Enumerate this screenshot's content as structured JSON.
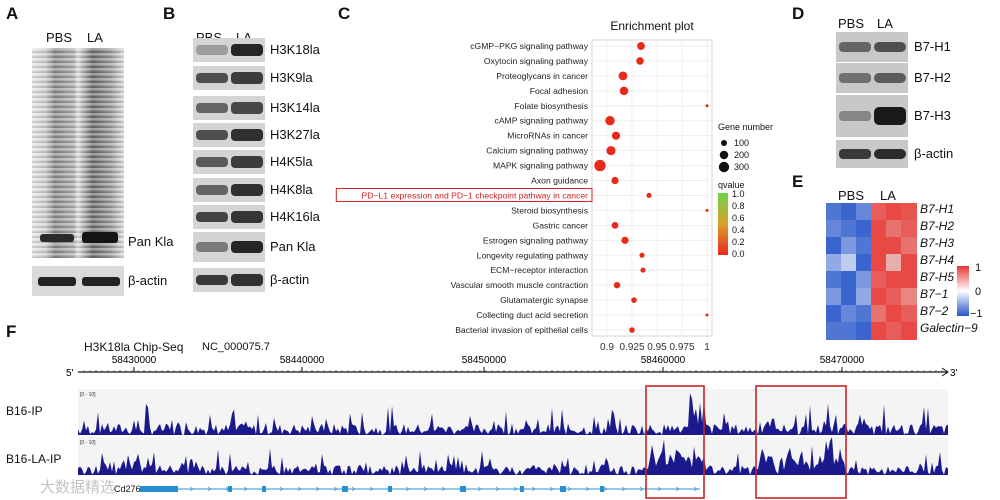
{
  "panel_a": {
    "label": "A",
    "lanes": [
      "PBS",
      "LA"
    ],
    "blot_labels": [
      "Pan Kla",
      "β-actin"
    ]
  },
  "panel_b": {
    "label": "B",
    "lanes": [
      "PBS",
      "LA"
    ],
    "blot_labels": [
      "H3K18la",
      "H3K9la",
      "H3K14la",
      "H3K27la",
      "H4K5la",
      "H4K8la",
      "H4K16la",
      "Pan Kla",
      "β-actin"
    ]
  },
  "panel_c": {
    "label": "C",
    "legend_size_title": "Gene number",
    "legend_color_title": "qvalue",
    "chart_data": {
      "type": "scatter",
      "title": "Enrichment plot",
      "xlabel": "",
      "ylabel": "",
      "xlim": [
        0.885,
        1.005
      ],
      "xticks": [
        "0.9",
        "0.925",
        "0.95",
        "0.975",
        "1"
      ],
      "xtick_values": [
        0.9,
        0.925,
        0.95,
        0.975,
        1.0
      ],
      "highlighted_term": "PD−L1 expression and PD−1 checkpoint pathway in cancer",
      "terms": [
        "cGMP−PKG signaling pathway",
        "Oxytocin signaling pathway",
        "Proteoglycans in cancer",
        "Focal adhesion",
        "Folate biosynthesis",
        "cAMP signaling pathway",
        "MicroRNAs in cancer",
        "Calcium signaling pathway",
        "MAPK signaling pathway",
        "Axon guidance",
        "PD−L1 expression and PD−1 checkpoint pathway in cancer",
        "Steroid biosynthesis",
        "Gastric cancer",
        "Estrogen signaling pathway",
        "Longevity regulating pathway",
        "ECM−receptor interaction",
        "Vascular smooth muscle contraction",
        "Glutamatergic synapse",
        "Collecting duct acid secretion",
        "Bacterial invasion of epithelial cells"
      ],
      "x_values": [
        0.934,
        0.933,
        0.916,
        0.917,
        1.0,
        0.903,
        0.909,
        0.904,
        0.893,
        0.908,
        0.942,
        1.0,
        0.908,
        0.918,
        0.935,
        0.936,
        0.91,
        0.927,
        1.0,
        0.925
      ],
      "gene_number": [
        120,
        110,
        150,
        140,
        4,
        170,
        130,
        160,
        250,
        100,
        50,
        4,
        90,
        100,
        50,
        50,
        80,
        60,
        4,
        60
      ],
      "size_legend": [
        100,
        200,
        300
      ],
      "color_scale": {
        "min": 0.0,
        "max": 1.0,
        "ticks": [
          "1.0",
          "0.8",
          "0.6",
          "0.4",
          "0.2",
          "0.0"
        ],
        "low_color": "#e8291c",
        "high_color": "#6dd44a"
      },
      "point_color": "#e8291c"
    }
  },
  "panel_d": {
    "label": "D",
    "lanes": [
      "PBS",
      "LA"
    ],
    "blot_labels": [
      "B7-H1",
      "B7-H2",
      "B7-H3",
      "β-actin"
    ]
  },
  "panel_e": {
    "label": "E",
    "columns": [
      "PBS",
      "LA"
    ],
    "genes": [
      "B7-H1",
      "B7-H2",
      "B7-H3",
      "B7-H4",
      "B7-H5",
      "B7−1",
      "B7−2",
      "Galectin−9"
    ],
    "scale_ticks": [
      "1",
      "0",
      "−1"
    ]
  },
  "panel_f": {
    "label": "F",
    "title": "H3K18la Chip-Seq",
    "accession": "NC_000075.7",
    "end5": "5'",
    "end3": "3'",
    "coords": [
      "58430000",
      "58440000",
      "58450000",
      "58460000",
      "58470000"
    ],
    "tracks": [
      "B16-IP",
      "B16-LA-IP"
    ],
    "track_range": "[0 - 10]",
    "gene": "Cd276",
    "watermark": "大数据精选"
  },
  "colors": {
    "heat_red": "#e8352f",
    "heat_blue": "#2454c8",
    "track_blue": "#1a1a8c",
    "gene_blue": "#2a8fd0",
    "highlight_red": "#cc2222"
  }
}
